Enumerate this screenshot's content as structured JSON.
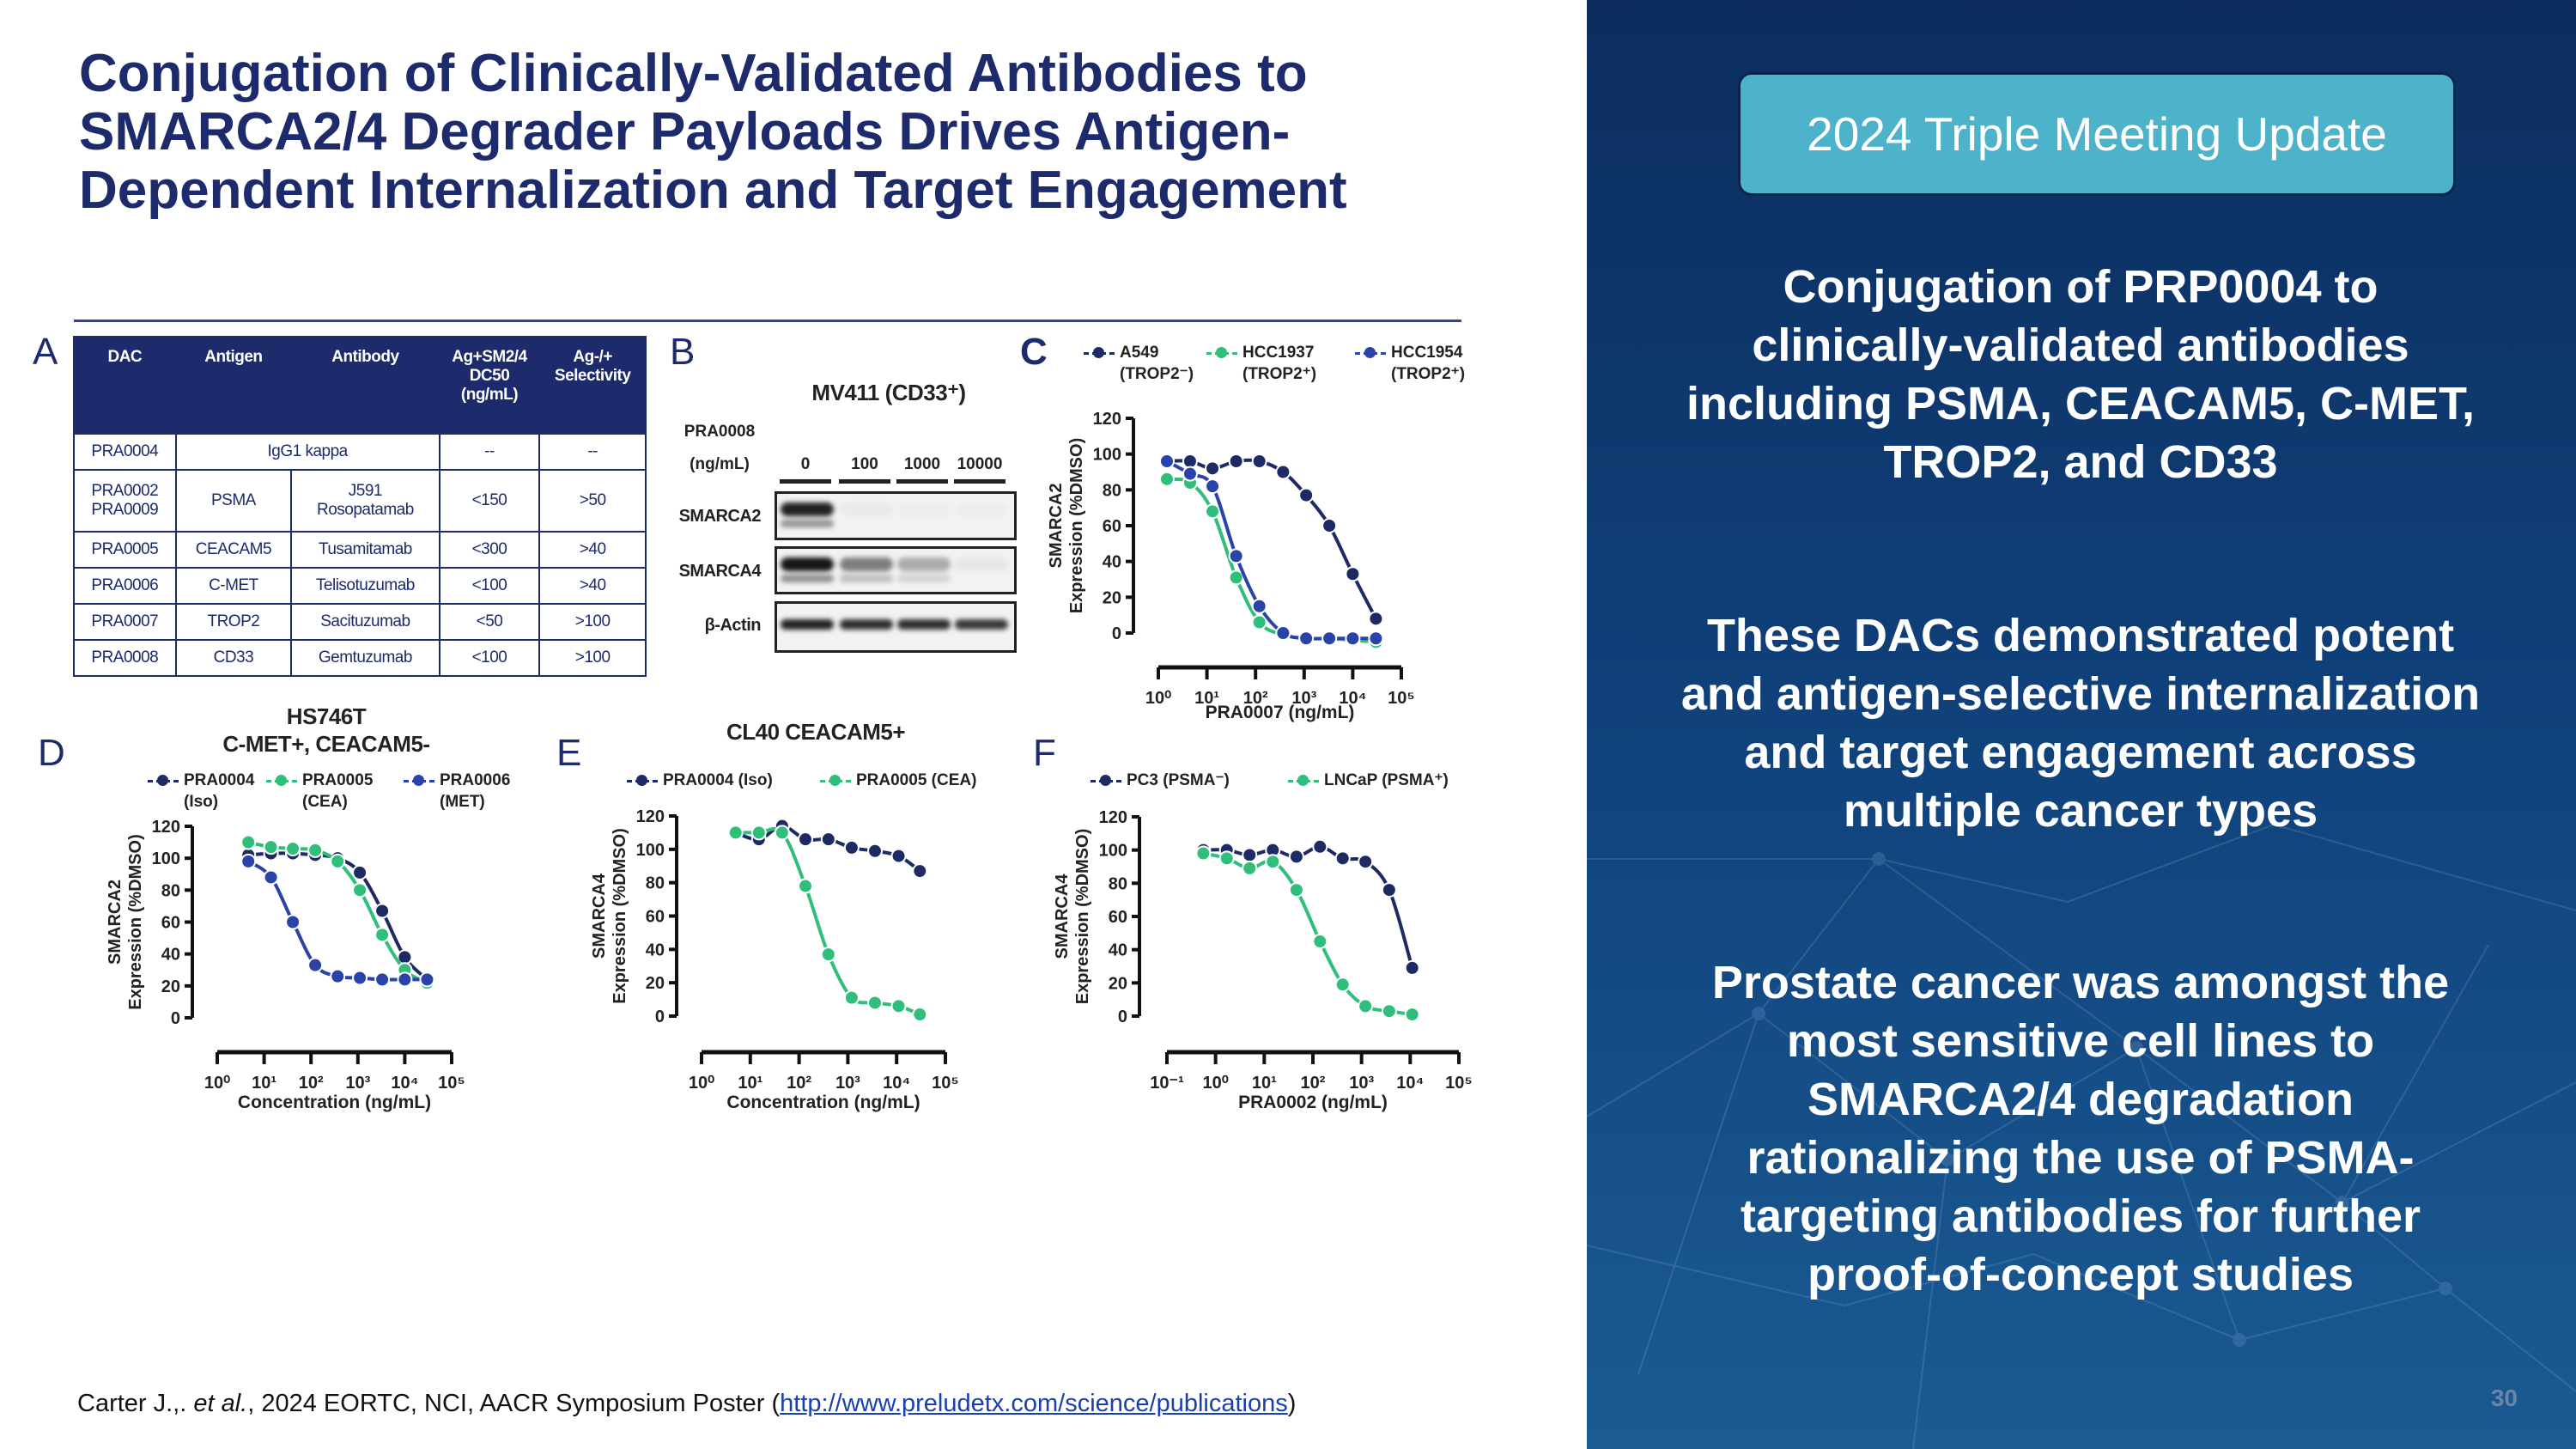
{
  "slide": {
    "title": "Conjugation of Clinically-Validated Antibodies to\nSMARCA2/4 Degrader Payloads Drives Antigen-\nDependent Internalization and Target Engagement",
    "page_number": "30",
    "citation": {
      "prefix": "Carter J.,. ",
      "etal": "et al.",
      "middle": ", 2024 EORTC, NCI, AACR Symposium Poster (",
      "link": "http://www.preludetx.com/science/publications",
      "suffix": ")"
    }
  },
  "panels": {
    "a": "A",
    "b": "B",
    "c": "C",
    "d": "D",
    "e": "E",
    "f": "F"
  },
  "table": {
    "headers": [
      "DAC",
      "Antigen",
      "Antibody",
      "Ag+SM2/4\nDC50\n(ng/mL)",
      "Ag-/+\nSelectivity"
    ],
    "iso_row": {
      "dac": "PRA0004",
      "antigen_antibody": "IgG1 kappa",
      "dc50": "--",
      "selectivity": "--"
    },
    "rows": [
      {
        "dac": "PRA0002\nPRA0009",
        "antigen": "PSMA",
        "antibody": "J591\nRosopatamab",
        "dc50": "<150",
        "selectivity": ">50"
      },
      {
        "dac": "PRA0005",
        "antigen": "CEACAM5",
        "antibody": "Tusamitamab",
        "dc50": "<300",
        "selectivity": ">40"
      },
      {
        "dac": "PRA0006",
        "antigen": "C-MET",
        "antibody": "Telisotuzumab",
        "dc50": "<100",
        "selectivity": ">40"
      },
      {
        "dac": "PRA0007",
        "antigen": "TROP2",
        "antibody": "Sacituzumab",
        "dc50": "<50",
        "selectivity": ">100"
      },
      {
        "dac": "PRA0008",
        "antigen": "CD33",
        "antibody": "Gemtuzumab",
        "dc50": "<100",
        "selectivity": ">100"
      }
    ]
  },
  "western": {
    "title": "MV411 (CD33⁺)",
    "compound": "PRA0008",
    "unit": "(ng/mL)",
    "doses": [
      "0",
      "100",
      "1000",
      "10000"
    ],
    "proteins": [
      "SMARCA2",
      "SMARCA4",
      "β-Actin"
    ],
    "band_intensity": {
      "SMARCA2": [
        0.9,
        0.03,
        0.02,
        0.02
      ],
      "SMARCA4": [
        0.95,
        0.5,
        0.3,
        0.05
      ],
      "β-Actin": [
        0.9,
        0.85,
        0.85,
        0.8
      ]
    }
  },
  "chart_data": [
    {
      "id": "C",
      "type": "line",
      "xscale": "log",
      "title": "",
      "xlabel": "PRA0007 (ng/mL)",
      "ylabel": [
        "SMARCA2",
        "Expression (%DMSO)"
      ],
      "xlim": [
        1,
        100000
      ],
      "ylim": [
        0,
        120
      ],
      "x_ticks": [
        1,
        10,
        100,
        1000,
        10000,
        100000
      ],
      "x_tick_labels": [
        "10⁰",
        "10¹",
        "10²",
        "10³",
        "10⁴",
        "10⁵"
      ],
      "y_ticks": [
        0,
        20,
        40,
        60,
        80,
        100,
        120
      ],
      "x": [
        1.5,
        4.5,
        13,
        40,
        120,
        370,
        1100,
        3300,
        10000,
        30000
      ],
      "series": [
        {
          "name": "A549",
          "sub": "(TROP2⁻)",
          "color": "#1e2a64",
          "values": [
            96,
            96,
            92,
            96,
            96,
            90,
            77,
            60,
            33,
            8
          ]
        },
        {
          "name": "HCC1937",
          "sub": "(TROP2⁺)",
          "color": "#2fbf7a",
          "values": [
            86,
            84,
            68,
            31,
            6,
            -1,
            -3,
            -3,
            -4,
            -5
          ]
        },
        {
          "name": "HCC1954",
          "sub": "(TROP2⁺)",
          "color": "#2a43a8",
          "values": [
            96,
            89,
            82,
            43,
            15,
            0,
            -3,
            -3,
            -3,
            -3
          ]
        }
      ]
    },
    {
      "id": "D",
      "type": "line",
      "xscale": "log",
      "title": "HS746T\nC-MET+, CEACAM5-",
      "xlabel": "Concentration (ng/mL)",
      "ylabel": [
        "SMARCA2",
        "Expression (%DMSO)"
      ],
      "xlim": [
        1,
        100000
      ],
      "ylim": [
        0,
        120
      ],
      "x_ticks": [
        1,
        10,
        100,
        1000,
        10000,
        100000
      ],
      "x_tick_labels": [
        "10⁰",
        "10¹",
        "10²",
        "10³",
        "10⁴",
        "10⁵"
      ],
      "y_ticks": [
        0,
        20,
        40,
        60,
        80,
        100,
        120
      ],
      "x": [
        4.6,
        14,
        41,
        123,
        370,
        1100,
        3300,
        10000,
        30000
      ],
      "series": [
        {
          "name": "PRA0004",
          "sub": "(Iso)",
          "color": "#1e2a64",
          "values": [
            102,
            103,
            103,
            102,
            100,
            91,
            67,
            38,
            24
          ]
        },
        {
          "name": "PRA0005",
          "sub": "(CEA)",
          "color": "#2fbf7a",
          "values": [
            110,
            107,
            106,
            105,
            98,
            80,
            52,
            30,
            22
          ]
        },
        {
          "name": "PRA0006",
          "sub": "(MET)",
          "color": "#2a43a8",
          "values": [
            98,
            88,
            60,
            33,
            26,
            25,
            24,
            24,
            24
          ]
        }
      ]
    },
    {
      "id": "E",
      "type": "line",
      "xscale": "log",
      "title": "CL40 CEACAM5+",
      "xlabel": "Concentration (ng/mL)",
      "ylabel": [
        "SMARCA4",
        "Expression (%DMSO)"
      ],
      "xlim": [
        1,
        100000
      ],
      "ylim": [
        0,
        120
      ],
      "x_ticks": [
        1,
        10,
        100,
        1000,
        10000,
        100000
      ],
      "x_tick_labels": [
        "10⁰",
        "10¹",
        "10²",
        "10³",
        "10⁴",
        "10⁵"
      ],
      "y_ticks": [
        0,
        20,
        40,
        60,
        80,
        100,
        120
      ],
      "x": [
        5,
        15,
        45,
        135,
        400,
        1200,
        3600,
        11000,
        30000
      ],
      "series": [
        {
          "name": "PRA0004 (Iso)",
          "sub": "",
          "color": "#1e2a64",
          "values": [
            110,
            106,
            114,
            106,
            106,
            101,
            99,
            96,
            87
          ]
        },
        {
          "name": "PRA0005 (CEA)",
          "sub": "",
          "color": "#2fbf7a",
          "values": [
            110,
            110,
            110,
            78,
            37,
            11,
            8,
            6,
            1
          ]
        }
      ]
    },
    {
      "id": "F",
      "type": "line",
      "xscale": "log",
      "title": "",
      "xlabel": "PRA0002 (ng/mL)",
      "ylabel": [
        "SMARCA4",
        "Expression (%DMSO)"
      ],
      "xlim": [
        0.1,
        100000
      ],
      "ylim": [
        0,
        120
      ],
      "x_ticks": [
        0.1,
        1,
        10,
        100,
        1000,
        10000,
        100000
      ],
      "x_tick_labels": [
        "10⁻¹",
        "10⁰",
        "10¹",
        "10²",
        "10³",
        "10⁴",
        "10⁵"
      ],
      "y_ticks": [
        0,
        20,
        40,
        60,
        80,
        100,
        120
      ],
      "x": [
        0.56,
        1.7,
        5,
        15,
        46,
        140,
        410,
        1200,
        3700,
        11000
      ],
      "series": [
        {
          "name": "PC3 (PSMA⁻)",
          "sub": "",
          "color": "#1e2a64",
          "values": [
            100,
            100,
            97,
            100,
            96,
            102,
            95,
            93,
            76,
            29
          ]
        },
        {
          "name": "LNCaP (PSMA⁺)",
          "sub": "",
          "color": "#2fbf7a",
          "values": [
            98,
            95,
            89,
            93,
            76,
            45,
            19,
            6,
            3,
            1
          ]
        }
      ]
    }
  ],
  "sidebar": {
    "badge": "2024 Triple Meeting Update",
    "paragraphs": [
      "Conjugation of PRP0004 to\nclinically-validated antibodies\nincluding PSMA, CEACAM5, C-MET,\nTROP2, and CD33",
      "These DACs demonstrated potent\nand antigen-selective internalization\nand target engagement across\nmultiple cancer types",
      "Prostate cancer was amongst the\nmost sensitive cell lines to\nSMARCA2/4 degradation\nrationalizing the use of PSMA-\ntargeting antibodies for further\nproof-of-concept studies"
    ]
  }
}
